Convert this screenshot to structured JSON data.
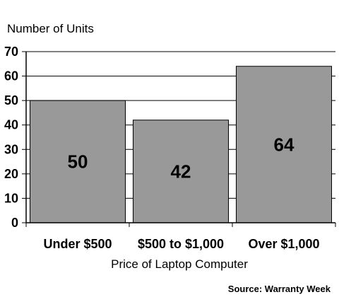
{
  "chart_data": {
    "type": "bar",
    "categories": [
      "Under $500",
      "$500 to $1,000",
      "Over $1,000"
    ],
    "values": [
      50,
      42,
      64
    ],
    "data_labels": [
      "50",
      "42",
      "64"
    ],
    "ylabel": "Number of Units",
    "xlabel": "Price of Laptop Computer",
    "ylim": [
      0,
      70
    ],
    "yticks": [
      0,
      10,
      20,
      30,
      40,
      50,
      60,
      70
    ],
    "grid": true,
    "bar_color": "#999999",
    "source": "Source: Warranty Week"
  }
}
